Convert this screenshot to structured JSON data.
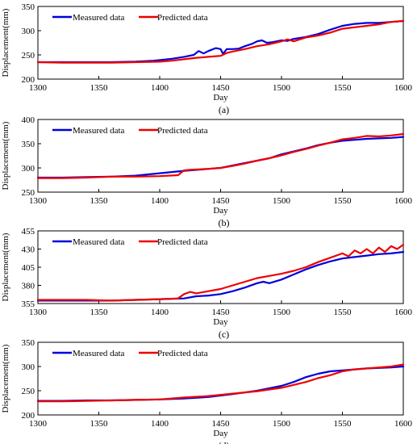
{
  "legend": {
    "measured": "Measured data",
    "predicted": "Predicted data"
  },
  "colors": {
    "measured": "#0000dd",
    "predicted": "#ee0000"
  },
  "chart_data": [
    {
      "type": "line",
      "panel_label": "(a)",
      "xlabel": "Day",
      "ylabel": "Displacement(mm)",
      "xlim": [
        1300,
        1600
      ],
      "ylim": [
        200,
        350
      ],
      "xticks": [
        "1300",
        "1350",
        "1400",
        "1450",
        "1500",
        "1550",
        "1600"
      ],
      "yticks": [
        "200",
        "250",
        "300",
        "350"
      ],
      "legend_position": "top-left",
      "series": [
        {
          "name": "Measured data",
          "x": [
            1300,
            1320,
            1340,
            1360,
            1380,
            1395,
            1410,
            1420,
            1428,
            1432,
            1436,
            1440,
            1446,
            1450,
            1452,
            1455,
            1460,
            1465,
            1470,
            1476,
            1480,
            1484,
            1488,
            1492,
            1500,
            1505,
            1510,
            1520,
            1530,
            1540,
            1550,
            1560,
            1570,
            1580,
            1590,
            1600
          ],
          "y": [
            235,
            235,
            235,
            235,
            236,
            238,
            242,
            246,
            250,
            258,
            253,
            258,
            264,
            262,
            252,
            262,
            262,
            263,
            268,
            273,
            278,
            280,
            275,
            276,
            280,
            279,
            283,
            287,
            293,
            302,
            310,
            314,
            316,
            316,
            318,
            320
          ]
        },
        {
          "name": "Predicted data",
          "x": [
            1300,
            1320,
            1340,
            1360,
            1380,
            1400,
            1410,
            1420,
            1430,
            1440,
            1450,
            1455,
            1460,
            1470,
            1480,
            1490,
            1500,
            1505,
            1510,
            1520,
            1530,
            1540,
            1550,
            1560,
            1570,
            1580,
            1590,
            1600
          ],
          "y": [
            235,
            234,
            234,
            234,
            235,
            236,
            238,
            241,
            244,
            246,
            248,
            254,
            257,
            262,
            268,
            272,
            278,
            282,
            278,
            286,
            290,
            296,
            304,
            307,
            310,
            313,
            318,
            320
          ]
        }
      ]
    },
    {
      "type": "line",
      "panel_label": "(b)",
      "xlabel": "Day",
      "ylabel": "Displacement(mm)",
      "xlim": [
        1300,
        1600
      ],
      "ylim": [
        250,
        400
      ],
      "xticks": [
        "1300",
        "1350",
        "1400",
        "1450",
        "1500",
        "1550",
        "1600"
      ],
      "yticks": [
        "250",
        "300",
        "350",
        "400"
      ],
      "legend_position": "top-left",
      "series": [
        {
          "name": "Measured data",
          "x": [
            1300,
            1320,
            1340,
            1360,
            1380,
            1400,
            1420,
            1440,
            1450,
            1460,
            1470,
            1480,
            1490,
            1500,
            1510,
            1520,
            1530,
            1540,
            1550,
            1560,
            1570,
            1580,
            1590,
            1600
          ],
          "y": [
            280,
            280,
            281,
            282,
            284,
            289,
            294,
            298,
            300,
            305,
            310,
            315,
            320,
            328,
            334,
            340,
            347,
            352,
            356,
            358,
            360,
            361,
            362,
            364
          ]
        },
        {
          "name": "Predicted data",
          "x": [
            1300,
            1320,
            1340,
            1360,
            1380,
            1400,
            1415,
            1420,
            1425,
            1440,
            1450,
            1460,
            1470,
            1480,
            1490,
            1500,
            1510,
            1520,
            1530,
            1540,
            1550,
            1560,
            1570,
            1580,
            1590,
            1600
          ],
          "y": [
            279,
            279,
            280,
            282,
            282,
            283,
            285,
            295,
            296,
            298,
            300,
            304,
            309,
            315,
            320,
            326,
            333,
            339,
            346,
            352,
            359,
            362,
            366,
            365,
            367,
            370
          ]
        }
      ]
    },
    {
      "type": "line",
      "panel_label": "(c)",
      "xlabel": "Day",
      "ylabel": "Displacement(mm)",
      "xlim": [
        1300,
        1600
      ],
      "ylim": [
        355,
        455
      ],
      "xticks": [
        "1300",
        "1350",
        "1400",
        "1450",
        "1500",
        "1550",
        "1600"
      ],
      "yticks": [
        "355",
        "380",
        "405",
        "430",
        "455"
      ],
      "legend_position": "top-left",
      "series": [
        {
          "name": "Measured data",
          "x": [
            1300,
            1320,
            1340,
            1360,
            1380,
            1400,
            1420,
            1430,
            1440,
            1450,
            1460,
            1470,
            1480,
            1485,
            1490,
            1500,
            1510,
            1520,
            1530,
            1540,
            1550,
            1560,
            1570,
            1580,
            1590,
            1600
          ],
          "y": [
            359,
            359,
            359,
            359,
            360,
            361,
            362,
            365,
            366,
            368,
            372,
            377,
            383,
            385,
            383,
            388,
            395,
            402,
            408,
            413,
            417,
            419,
            421,
            423,
            424,
            426
          ]
        },
        {
          "name": "Predicted data",
          "x": [
            1300,
            1320,
            1340,
            1360,
            1380,
            1400,
            1415,
            1420,
            1425,
            1430,
            1440,
            1450,
            1460,
            1470,
            1480,
            1490,
            1500,
            1510,
            1520,
            1530,
            1540,
            1550,
            1555,
            1560,
            1565,
            1570,
            1575,
            1580,
            1585,
            1590,
            1595,
            1600
          ],
          "y": [
            360,
            360,
            360,
            359,
            360,
            361,
            362,
            368,
            371,
            369,
            372,
            375,
            380,
            385,
            390,
            393,
            396,
            400,
            405,
            412,
            418,
            424,
            420,
            428,
            424,
            430,
            424,
            432,
            426,
            434,
            430,
            436
          ]
        }
      ]
    },
    {
      "type": "line",
      "panel_label": "(d)",
      "xlabel": "Day",
      "ylabel": "Displacement(mm)",
      "xlim": [
        1300,
        1600
      ],
      "ylim": [
        200,
        350
      ],
      "xticks": [
        "1300",
        "1350",
        "1400",
        "1450",
        "1500",
        "1550",
        "1600"
      ],
      "yticks": [
        "200",
        "250",
        "300",
        "350"
      ],
      "legend_position": "top-left",
      "series": [
        {
          "name": "Measured data",
          "x": [
            1300,
            1320,
            1340,
            1360,
            1380,
            1400,
            1420,
            1440,
            1460,
            1480,
            1490,
            1500,
            1510,
            1520,
            1530,
            1540,
            1550,
            1560,
            1570,
            1580,
            1590,
            1600
          ],
          "y": [
            229,
            229,
            230,
            230,
            231,
            232,
            234,
            237,
            243,
            250,
            255,
            260,
            268,
            278,
            285,
            290,
            292,
            294,
            296,
            297,
            298,
            300
          ]
        },
        {
          "name": "Predicted data",
          "x": [
            1300,
            1320,
            1340,
            1360,
            1380,
            1400,
            1420,
            1440,
            1460,
            1480,
            1500,
            1510,
            1520,
            1530,
            1540,
            1550,
            1560,
            1570,
            1580,
            1590,
            1600
          ],
          "y": [
            228,
            228,
            229,
            230,
            231,
            232,
            236,
            239,
            244,
            249,
            256,
            262,
            268,
            276,
            282,
            290,
            294,
            296,
            298,
            300,
            304
          ]
        }
      ]
    }
  ]
}
